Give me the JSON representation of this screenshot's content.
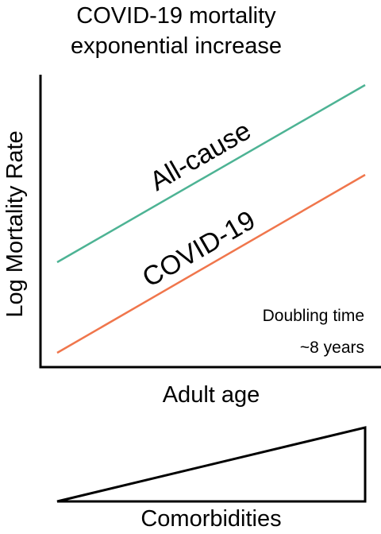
{
  "title": {
    "line1": "COVID-19 mortality",
    "line2": "exponential increase"
  },
  "axes": {
    "ylabel": "Log Mortality Rate",
    "xlabel": "Adult age"
  },
  "lines": {
    "all_cause": {
      "label": "All-cause",
      "color": "#4db394"
    },
    "covid": {
      "label": "COVID-19",
      "color": "#f0764c"
    }
  },
  "annotation": {
    "line1": "Doubling time",
    "line2": "~8 years"
  },
  "comorbidities": {
    "label": "Comorbidities"
  }
}
